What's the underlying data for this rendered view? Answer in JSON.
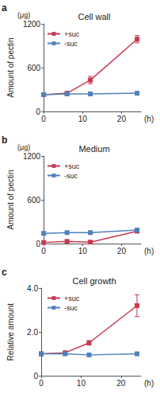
{
  "chart_data": [
    {
      "type": "line",
      "panel_label": "a",
      "title": "Cell wall",
      "y_label": "Amount of pectin",
      "y_unit": "(μg)",
      "x_label": "(h)",
      "x": [
        0,
        6,
        12,
        24
      ],
      "series": [
        {
          "name": "+suc",
          "color": "#c8394f",
          "marker": "square",
          "values": [
            230,
            250,
            430,
            990
          ],
          "errors": [
            0,
            0,
            50,
            50
          ]
        },
        {
          "name": "-suc",
          "color": "#4f81bd",
          "marker": "square",
          "values": [
            230,
            240,
            240,
            250
          ],
          "errors": [
            0,
            0,
            0,
            0
          ]
        }
      ],
      "xlim": [
        0,
        25
      ],
      "xticks": [
        0,
        10,
        20
      ],
      "ylim": [
        0,
        1200
      ],
      "yticks": [
        0,
        600,
        1200
      ],
      "grid": false,
      "legend": "upper left"
    },
    {
      "type": "line",
      "panel_label": "b",
      "title": "Medium",
      "y_label": "Amount of pectin",
      "y_unit": "(μg)",
      "x_label": "(h)",
      "x": [
        0,
        6,
        12,
        24
      ],
      "series": [
        {
          "name": "+suc",
          "color": "#c8394f",
          "marker": "square",
          "values": [
            15,
            30,
            20,
            170
          ],
          "errors": [
            0,
            0,
            0,
            0
          ]
        },
        {
          "name": "-suc",
          "color": "#4f81bd",
          "marker": "square",
          "values": [
            140,
            150,
            150,
            185
          ],
          "errors": [
            0,
            0,
            0,
            0
          ]
        }
      ],
      "xlim": [
        0,
        25
      ],
      "xticks": [
        0,
        10,
        20
      ],
      "ylim": [
        0,
        1200
      ],
      "yticks": [
        0,
        600,
        1200
      ],
      "grid": false,
      "legend": "upper left"
    },
    {
      "type": "line",
      "panel_label": "c",
      "title": "Cell growth",
      "y_label": "Relative amount",
      "x_label": "(h)",
      "x": [
        0,
        6,
        12,
        24
      ],
      "series": [
        {
          "name": "+suc",
          "color": "#c8394f",
          "marker": "square",
          "values": [
            1.0,
            1.05,
            1.5,
            3.2
          ],
          "errors": [
            0,
            0,
            0.1,
            0.5
          ]
        },
        {
          "name": "-suc",
          "color": "#4f81bd",
          "marker": "square",
          "values": [
            1.0,
            1.0,
            0.95,
            1.0
          ],
          "errors": [
            0,
            0,
            0,
            0
          ]
        }
      ],
      "xlim": [
        0,
        25
      ],
      "xticks": [
        0,
        10,
        20
      ],
      "ylim": [
        0,
        4
      ],
      "yticks": [
        0,
        {
          "value": 2,
          "label": "2.0"
        },
        {
          "value": 4,
          "label": "4.0"
        }
      ],
      "grid": false,
      "legend": "upper left"
    }
  ]
}
